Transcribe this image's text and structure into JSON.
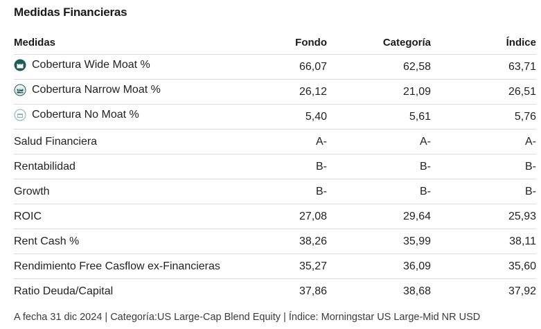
{
  "title": "Medidas Financieras",
  "table": {
    "headers": [
      "Medidas",
      "Fondo",
      "Categoría",
      "Índice"
    ],
    "rows": [
      {
        "label": "Cobertura Wide Moat %",
        "icon": "wide-moat-icon",
        "fondo": "66,07",
        "categoria": "62,58",
        "indice": "63,71"
      },
      {
        "label": "Cobertura Narrow Moat %",
        "icon": "narrow-moat-icon",
        "fondo": "26,12",
        "categoria": "21,09",
        "indice": "26,51"
      },
      {
        "label": "Cobertura No Moat %",
        "icon": "no-moat-icon",
        "fondo": "5,40",
        "categoria": "5,61",
        "indice": "5,76"
      },
      {
        "label": "Salud Financiera",
        "fondo": "A-",
        "categoria": "A-",
        "indice": "A-"
      },
      {
        "label": "Rentabilidad",
        "fondo": "B-",
        "categoria": "B-",
        "indice": "B-"
      },
      {
        "label": "Growth",
        "fondo": "B-",
        "categoria": "B-",
        "indice": "B-"
      },
      {
        "label": "ROIC",
        "fondo": "27,08",
        "categoria": "29,64",
        "indice": "25,93"
      },
      {
        "label": "Rent Cash %",
        "fondo": "38,26",
        "categoria": "35,99",
        "indice": "38,11"
      },
      {
        "label": "Rendimiento Free Casflow ex-Financieras",
        "fondo": "35,27",
        "categoria": "36,09",
        "indice": "35,60"
      },
      {
        "label": "Ratio Deuda/Capital",
        "fondo": "37,86",
        "categoria": "38,68",
        "indice": "37,92"
      }
    ]
  },
  "footnote": "A fecha 31 dic 2024 | Categoría:US Large-Cap Blend Equity | Índice: Morningstar US Large-Mid NR USD",
  "colors": {
    "moat_dark": "#1f5c57",
    "moat_light": "#7fb0aa",
    "border": "#dcdcdc"
  }
}
